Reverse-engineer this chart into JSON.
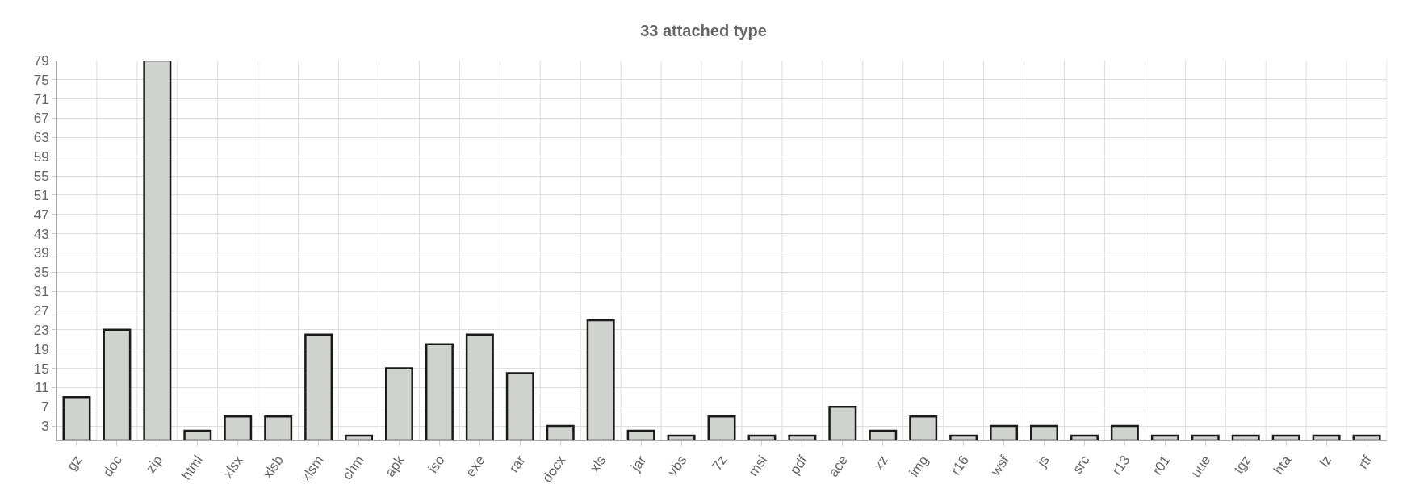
{
  "chart_data": {
    "type": "bar",
    "title": "33 attached type",
    "categories": [
      "gz",
      "doc",
      "zip",
      "html",
      "xlsx",
      "xlsb",
      "xlsm",
      "chm",
      "apk",
      "iso",
      "exe",
      "rar",
      "docx",
      "xls",
      "jar",
      "vbs",
      "7z",
      "msi",
      "pdf",
      "ace",
      "xz",
      "img",
      "r16",
      "wsf",
      "js",
      "src",
      "r13",
      "r01",
      "uue",
      "tgz",
      "hta",
      "lz",
      "rtf"
    ],
    "values": [
      9,
      23,
      79,
      2,
      5,
      5,
      22,
      1,
      15,
      20,
      22,
      14,
      3,
      25,
      2,
      1,
      5,
      1,
      1,
      7,
      2,
      5,
      1,
      3,
      3,
      1,
      3,
      1,
      1,
      1,
      1,
      1,
      1
    ],
    "color": "#d0d2d0",
    "ylim": [
      0,
      79
    ],
    "yticks": [
      3,
      7,
      11,
      15,
      19,
      23,
      27,
      31,
      35,
      39,
      43,
      47,
      51,
      55,
      59,
      63,
      67,
      71,
      75,
      79
    ],
    "grid": true
  }
}
